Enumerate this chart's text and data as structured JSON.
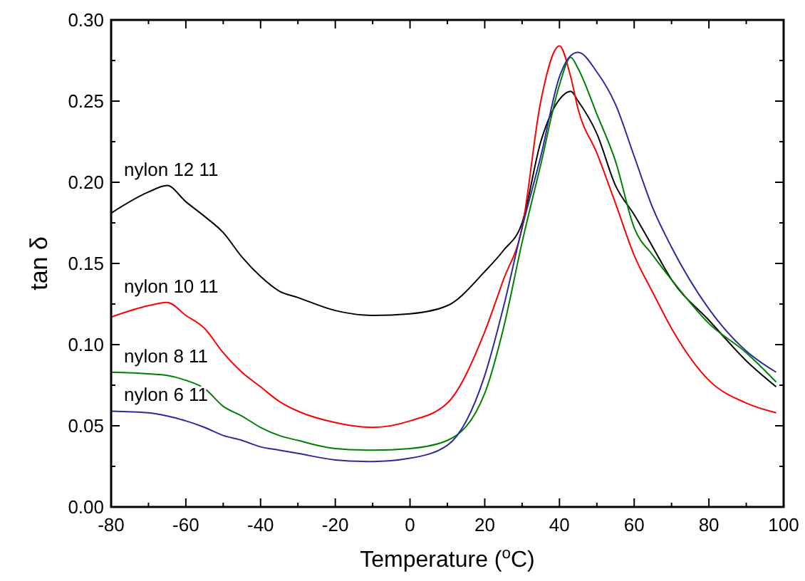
{
  "chart_data": {
    "type": "line",
    "xlabel": "Temperature ($^{o}$C)",
    "ylabel": "tan δ",
    "xlim": [
      -80,
      100
    ],
    "ylim": [
      0,
      0.3
    ],
    "xticks": [
      -80,
      {
        "value": -70,
        "label": null
      },
      -60,
      {
        "value": -50,
        "label": null
      },
      -40,
      {
        "value": -30,
        "label": null
      },
      -20,
      {
        "value": -10,
        "label": null
      },
      0,
      {
        "value": 10,
        "label": null
      },
      20,
      {
        "value": 30,
        "label": null
      },
      40,
      {
        "value": 50,
        "label": null
      },
      60,
      {
        "value": 70,
        "label": null
      },
      80,
      {
        "value": 90,
        "label": null
      },
      100
    ],
    "yticks": [
      {
        "value": 0,
        "label": "0.00"
      },
      {
        "value": 0.025,
        "label": null
      },
      {
        "value": 0.05,
        "label": "0.05"
      },
      {
        "value": 0.075,
        "label": null
      },
      {
        "value": 0.1,
        "label": "0.10"
      },
      {
        "value": 0.125,
        "label": null
      },
      {
        "value": 0.15,
        "label": "0.15"
      },
      {
        "value": 0.175,
        "label": null
      },
      {
        "value": 0.2,
        "label": "0.20"
      },
      {
        "value": 0.225,
        "label": null
      },
      {
        "value": 0.25,
        "label": "0.25"
      },
      {
        "value": 0.275,
        "label": null
      },
      {
        "value": 0.3,
        "label": "0.30"
      }
    ],
    "grid": false,
    "marker": "none",
    "line_style": "solid",
    "x": [
      -80,
      -70,
      -65,
      -60,
      -55,
      -50,
      -45,
      -40,
      -35,
      -30,
      -20,
      -10,
      0,
      10,
      20,
      25,
      30,
      35,
      40,
      43,
      45,
      50,
      55,
      60,
      65,
      70,
      80,
      90,
      98
    ],
    "series": [
      {
        "name": "nylon 12 11",
        "color": "#000000",
        "values": [
          0.181,
          0.194,
          0.198,
          0.188,
          0.179,
          0.169,
          0.154,
          0.142,
          0.133,
          0.129,
          0.121,
          0.118,
          0.119,
          0.124,
          0.145,
          0.158,
          0.175,
          0.225,
          0.251,
          0.256,
          0.25,
          0.23,
          0.198,
          0.18,
          0.16,
          0.14,
          0.115,
          0.09,
          0.074
        ]
      },
      {
        "name": "nylon 10 11",
        "color": "#ff0000",
        "values": [
          0.117,
          0.124,
          0.126,
          0.118,
          0.11,
          0.095,
          0.083,
          0.074,
          0.065,
          0.059,
          0.052,
          0.049,
          0.053,
          0.064,
          0.108,
          0.14,
          0.172,
          0.25,
          0.284,
          0.265,
          0.245,
          0.218,
          0.187,
          0.155,
          0.132,
          0.11,
          0.078,
          0.064,
          0.058
        ]
      },
      {
        "name": "nylon 8 11",
        "color": "#008000",
        "values": [
          0.083,
          0.082,
          0.081,
          0.078,
          0.073,
          0.062,
          0.056,
          0.049,
          0.044,
          0.041,
          0.036,
          0.035,
          0.036,
          0.041,
          0.07,
          0.11,
          0.163,
          0.211,
          0.26,
          0.277,
          0.27,
          0.242,
          0.213,
          0.172,
          0.155,
          0.14,
          0.113,
          0.095,
          0.077
        ]
      },
      {
        "name": "nylon 6 11",
        "color": "#2b2b9e",
        "values": [
          0.059,
          0.058,
          0.056,
          0.053,
          0.049,
          0.044,
          0.041,
          0.037,
          0.035,
          0.033,
          0.029,
          0.028,
          0.03,
          0.038,
          0.081,
          0.123,
          0.172,
          0.216,
          0.265,
          0.278,
          0.28,
          0.268,
          0.248,
          0.216,
          0.184,
          0.16,
          0.122,
          0.096,
          0.083
        ]
      }
    ]
  }
}
